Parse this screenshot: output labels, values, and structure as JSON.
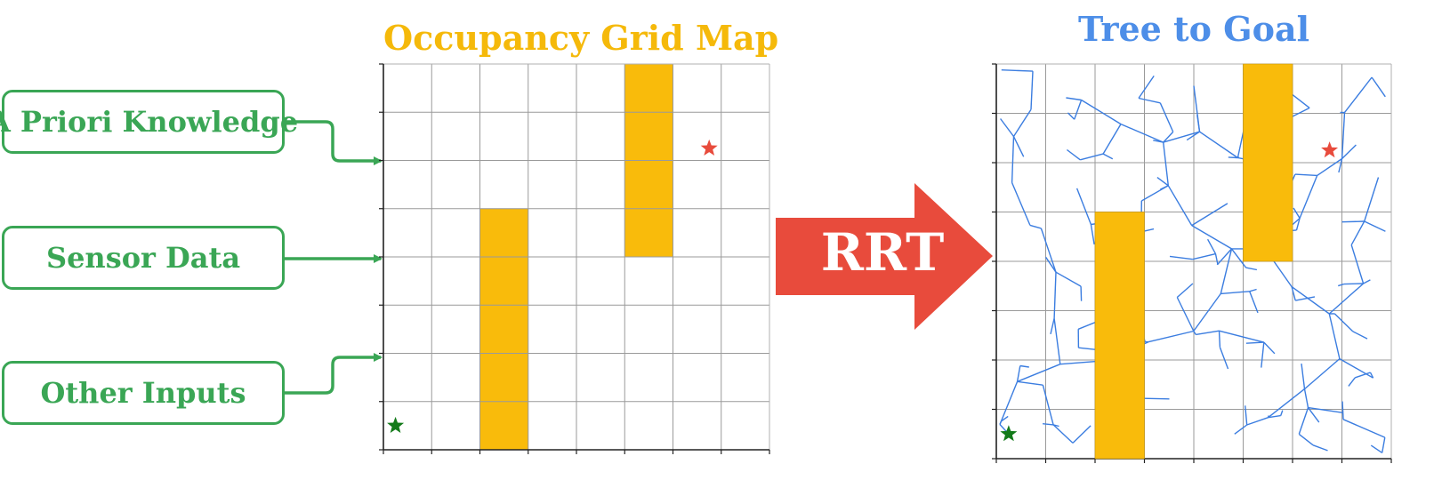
{
  "inputs": [
    {
      "label": "A Priori Knowledge"
    },
    {
      "label": "Sensor Data"
    },
    {
      "label": "Other Inputs"
    }
  ],
  "occupancy_map": {
    "title": "Occupancy Grid Map",
    "grid_cells": 8,
    "obstacles": [
      {
        "col": 2,
        "row_from": 3,
        "row_to": 7
      },
      {
        "col": 5,
        "row_from": 0,
        "row_to": 3
      }
    ],
    "start_marker": {
      "col": 0.25,
      "row": 7.5
    },
    "goal_marker": {
      "col": 6.75,
      "row": 1.75
    }
  },
  "process": {
    "label": "RRT"
  },
  "tree_map": {
    "title": "Tree to Goal",
    "grid_cells": 8,
    "obstacles": [
      {
        "col": 2,
        "row_from": 3,
        "row_to": 7
      },
      {
        "col": 5,
        "row_from": 0,
        "row_to": 3
      }
    ],
    "start_marker": {
      "col": 0.25,
      "row": 7.5
    },
    "goal_marker": {
      "col": 6.75,
      "row": 1.75
    }
  },
  "colors": {
    "green": "#3aa655",
    "obstacle": "#f9bb0b",
    "arrow_red": "#e84b3c",
    "tree_blue": "#3b7de0",
    "goal_star": "#e84b3c",
    "start_star": "#137a1a",
    "grid_line": "#9a9a9a"
  }
}
